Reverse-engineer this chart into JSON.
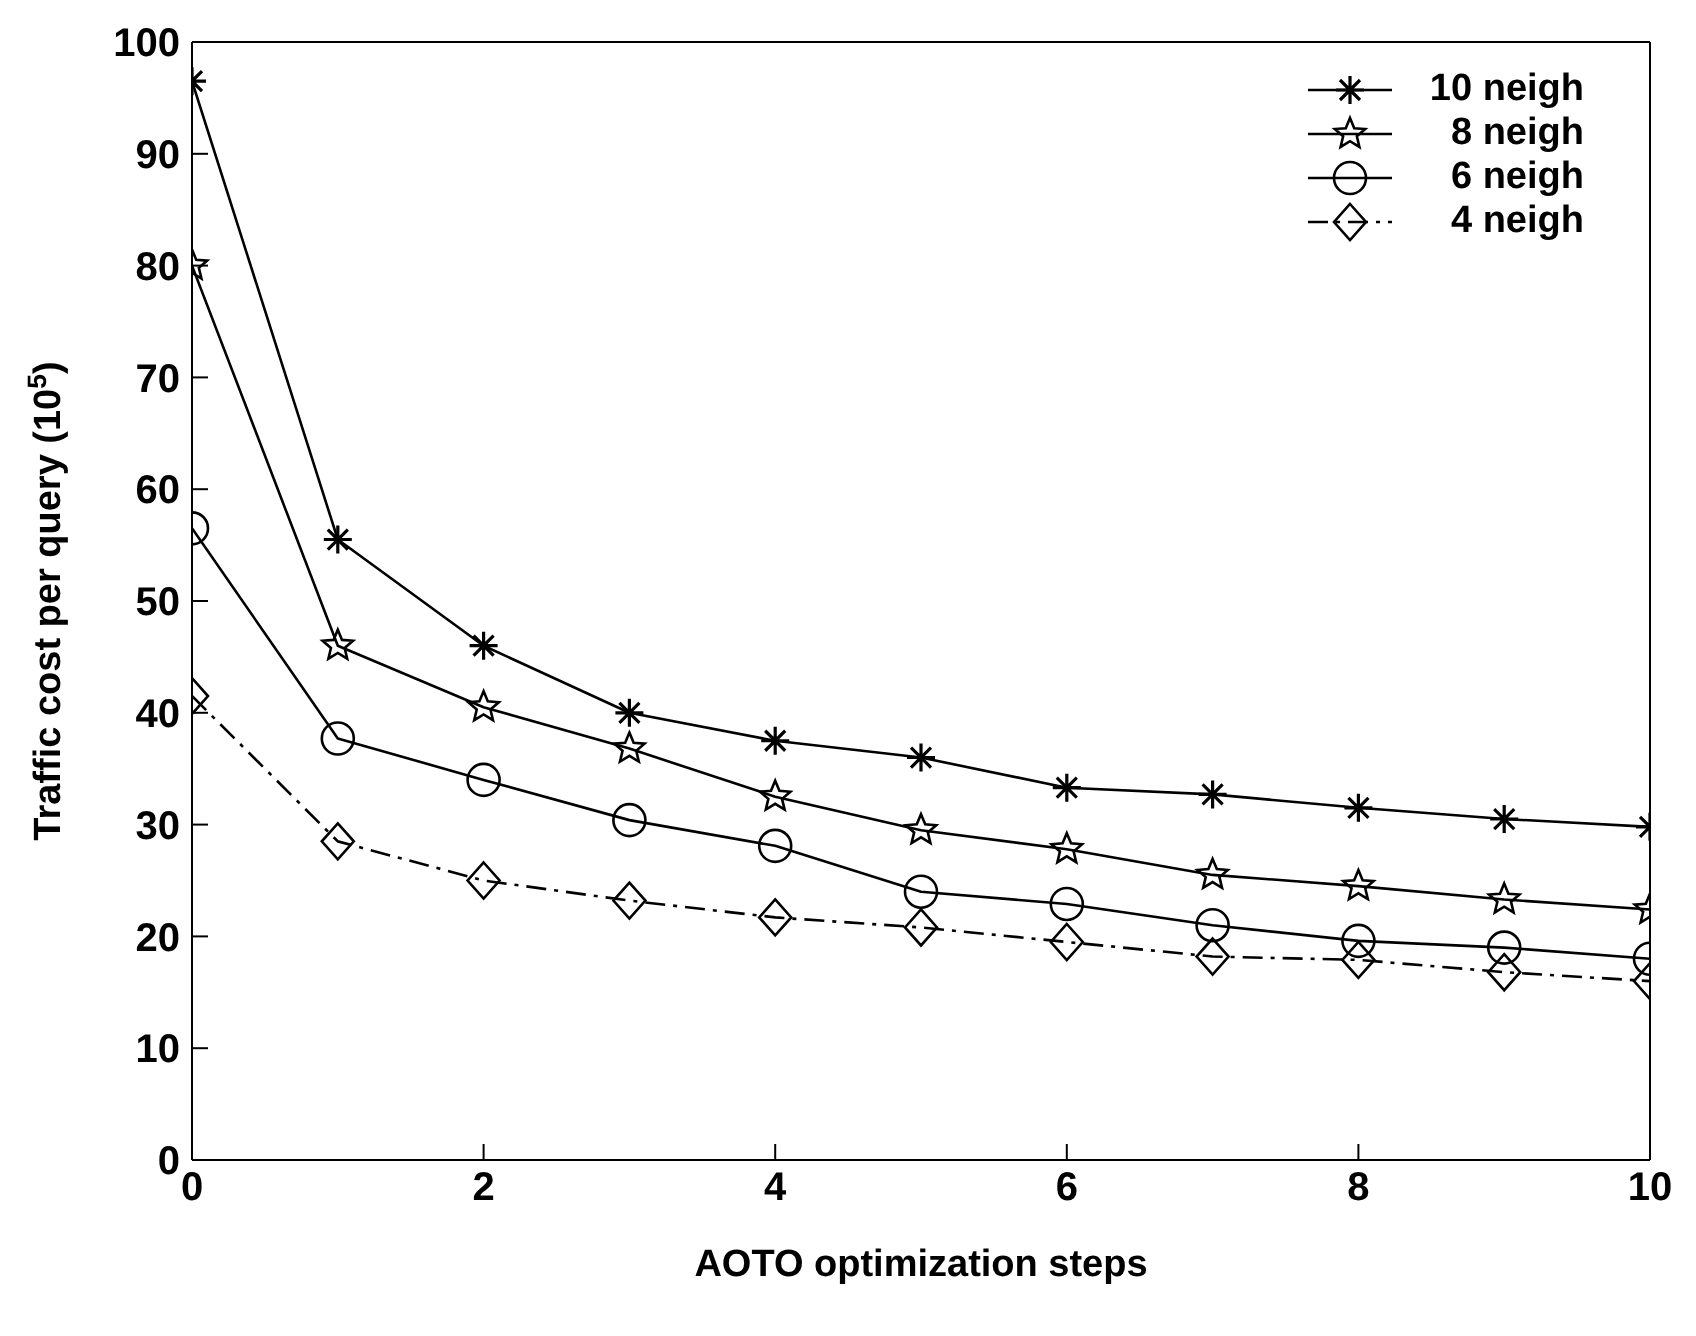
{
  "chart_data": {
    "type": "line",
    "xlabel": "AOTO optimization steps",
    "ylabel": "Traffic cost per query (10$^{5}$)",
    "x": [
      0,
      1,
      2,
      3,
      4,
      5,
      6,
      7,
      8,
      9,
      10
    ],
    "series": [
      {
        "name": "10 neigh",
        "color": "#000000",
        "marker": "cross",
        "line_style": "solid",
        "values": [
          96.5,
          55.5,
          46,
          40,
          37.5,
          36,
          33.3,
          32.7,
          31.5,
          30.5,
          29.8
        ]
      },
      {
        "name": "8 neigh",
        "color": "#000000",
        "marker": "star",
        "line_style": "solid",
        "values": [
          80,
          46,
          40.5,
          36.8,
          32.5,
          29.5,
          27.8,
          25.5,
          24.5,
          23.3,
          22.4
        ]
      },
      {
        "name": "6 neigh",
        "color": "#000000",
        "marker": "circle",
        "line_style": "solid",
        "values": [
          56.5,
          37.7,
          34,
          30.4,
          28.1,
          24,
          22.9,
          21,
          19.6,
          19,
          18
        ]
      },
      {
        "name": "4 neigh",
        "color": "#000000",
        "marker": "diamond",
        "line_style": "dashed",
        "values": [
          41.5,
          28.5,
          25,
          23.2,
          21.7,
          20.8,
          19.5,
          18.2,
          17.9,
          16.8,
          16
        ]
      }
    ],
    "xlim": [
      0,
      10
    ],
    "xticks": [
      0,
      2,
      4,
      6,
      8,
      10
    ],
    "ylim": [
      0,
      100
    ],
    "yticks": [
      0,
      10,
      20,
      30,
      40,
      50,
      60,
      70,
      80,
      90,
      100
    ],
    "grid": false,
    "legend": "top right"
  }
}
